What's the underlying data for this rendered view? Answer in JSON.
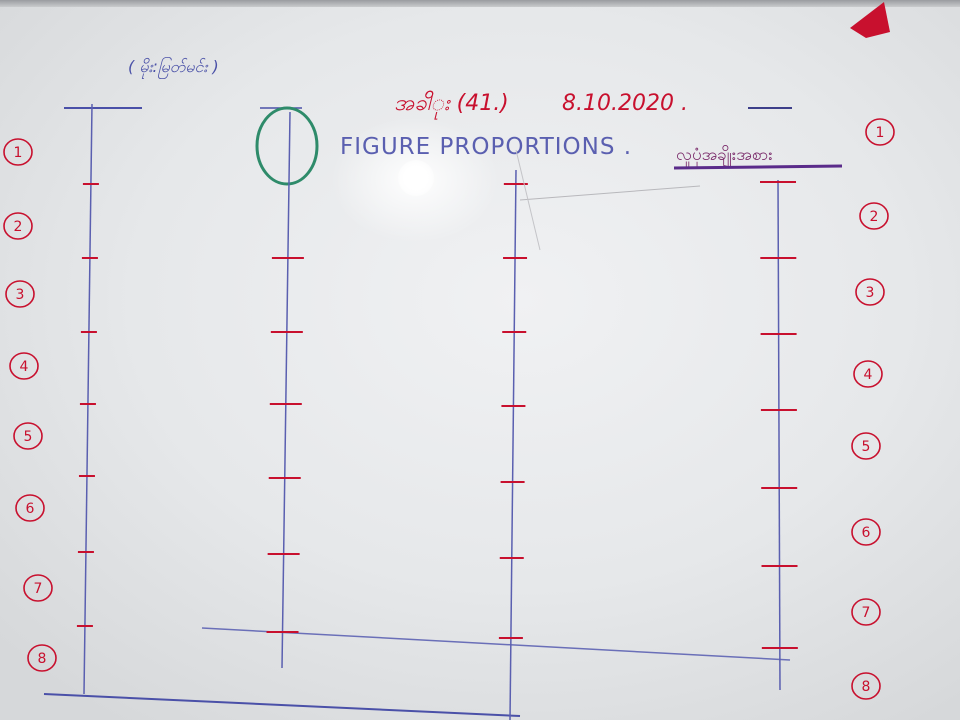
{
  "board": {
    "side_note": "( မိုး:မြတ်မင်း )",
    "lesson_title": "အခါိုး (41.)",
    "date": "8.10.2020 .",
    "heading_en": "FIGURE PROPORTIONS .",
    "heading_my": "လူပုံအချိုးအစား"
  },
  "left_numbers": [
    "1",
    "2",
    "3",
    "4",
    "5",
    "6",
    "7",
    "8"
  ],
  "right_numbers": [
    "1",
    "2",
    "3",
    "4",
    "5",
    "6",
    "7",
    "8"
  ],
  "figures": [
    {
      "divisions": 8,
      "head_drawn": false
    },
    {
      "divisions": 8,
      "head_drawn": true
    },
    {
      "divisions": 8,
      "head_drawn": false
    },
    {
      "divisions": 8,
      "head_drawn": false
    }
  ],
  "colors": {
    "red_marker": "#c8102e",
    "blue_marker": "#5a5fb0",
    "green_marker": "#2e8b6a",
    "board": "#e8eaec"
  }
}
